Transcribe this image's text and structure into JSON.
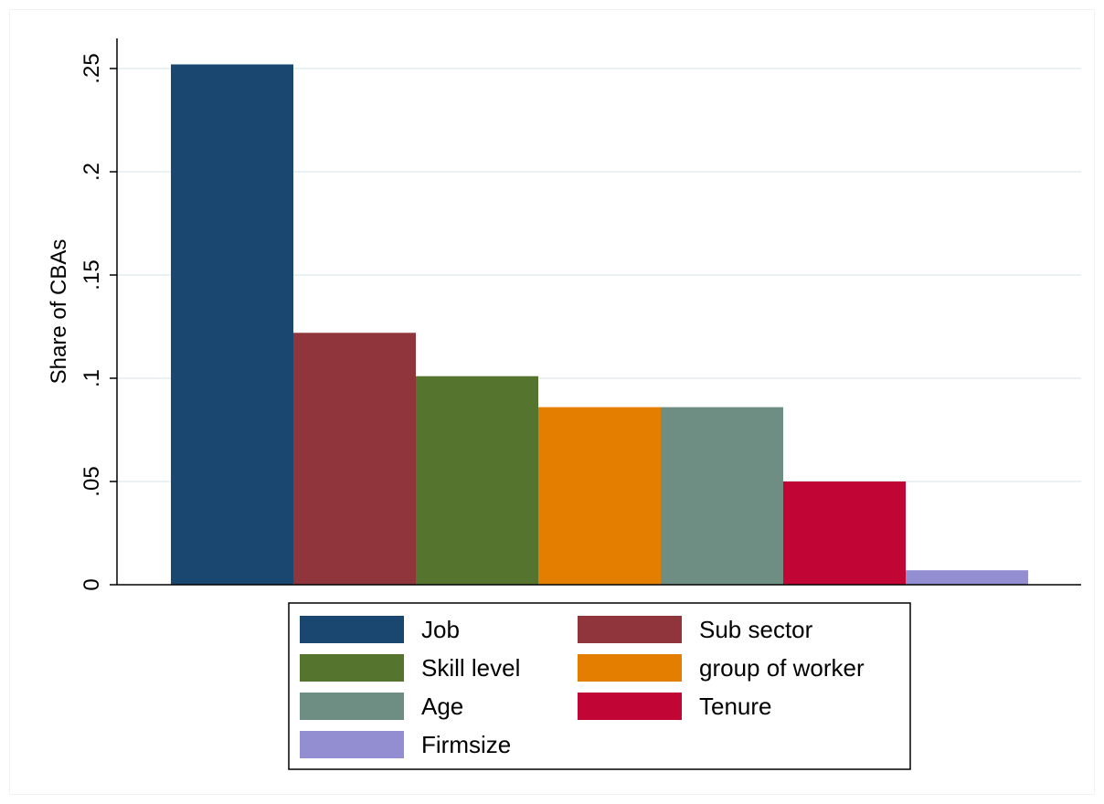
{
  "chart_data": {
    "type": "bar",
    "title": "",
    "xlabel": "",
    "ylabel": "Share of CBAs",
    "ylim": [
      0,
      0.26
    ],
    "yticks": [
      {
        "value": 0,
        "label": "0"
      },
      {
        "value": 0.05,
        "label": ".05"
      },
      {
        "value": 0.1,
        "label": ".1"
      },
      {
        "value": 0.15,
        "label": ".15"
      },
      {
        "value": 0.2,
        "label": ".2"
      },
      {
        "value": 0.25,
        "label": ".25"
      }
    ],
    "grid": true,
    "legend_position": "bottom",
    "series": [
      {
        "name": "Job",
        "value": 0.252,
        "color": "#1a476f"
      },
      {
        "name": "Sub sector",
        "value": 0.122,
        "color": "#90353b"
      },
      {
        "name": "Skill level",
        "value": 0.101,
        "color": "#55752f"
      },
      {
        "name": "group of worker",
        "value": 0.086,
        "color": "#e37e00"
      },
      {
        "name": "Age",
        "value": 0.086,
        "color": "#6e8e84"
      },
      {
        "name": "Tenure",
        "value": 0.05,
        "color": "#c10534"
      },
      {
        "name": "Firmsize",
        "value": 0.007,
        "color": "#938dd2"
      }
    ]
  }
}
